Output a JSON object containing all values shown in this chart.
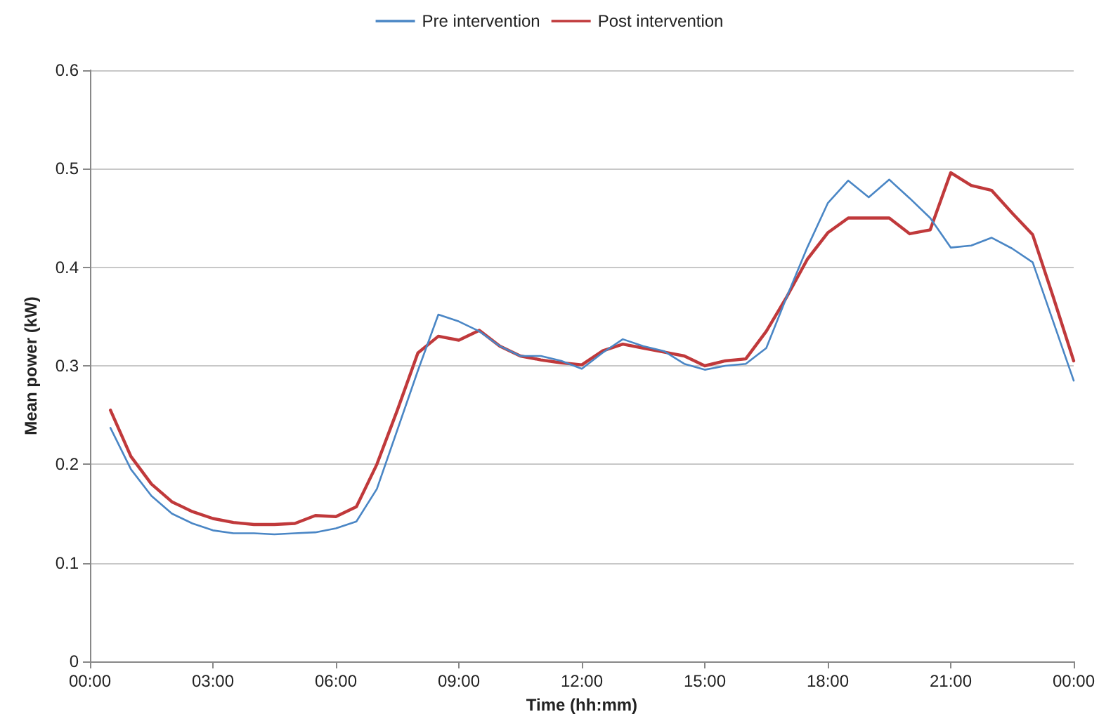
{
  "chart_data": {
    "type": "line",
    "xlabel": "Time (hh:mm)",
    "ylabel": "Mean power (kW)",
    "x": [
      0.5,
      1,
      1.5,
      2,
      2.5,
      3,
      3.5,
      4,
      4.5,
      5,
      5.5,
      6,
      6.5,
      7,
      7.5,
      8,
      8.5,
      9,
      9.5,
      10,
      10.5,
      11,
      11.5,
      12,
      12.5,
      13,
      13.5,
      14,
      14.5,
      15,
      15.5,
      16,
      16.5,
      17,
      17.5,
      18,
      18.5,
      19,
      19.5,
      20,
      20.5,
      21,
      21.5,
      22,
      22.5,
      23,
      23.5,
      24
    ],
    "series": [
      {
        "name": "Pre intervention",
        "color": "#4a86c5",
        "values": [
          0.237,
          0.195,
          0.168,
          0.15,
          0.14,
          0.133,
          0.13,
          0.13,
          0.129,
          0.13,
          0.131,
          0.135,
          0.142,
          0.175,
          0.235,
          0.295,
          0.352,
          0.345,
          0.335,
          0.32,
          0.31,
          0.31,
          0.305,
          0.297,
          0.313,
          0.327,
          0.32,
          0.315,
          0.302,
          0.296,
          0.3,
          0.302,
          0.318,
          0.37,
          0.42,
          0.465,
          0.488,
          0.471,
          0.489,
          0.47,
          0.45,
          0.42,
          0.422,
          0.43,
          0.419,
          0.405,
          0.345,
          0.285
        ]
      },
      {
        "name": "Post intervention",
        "color": "#c0393b",
        "values": [
          0.255,
          0.208,
          0.18,
          0.162,
          0.152,
          0.145,
          0.141,
          0.139,
          0.139,
          0.14,
          0.148,
          0.147,
          0.157,
          0.2,
          0.255,
          0.313,
          0.33,
          0.326,
          0.336,
          0.32,
          0.31,
          0.306,
          0.303,
          0.301,
          0.315,
          0.322,
          0.318,
          0.314,
          0.31,
          0.3,
          0.305,
          0.307,
          0.335,
          0.37,
          0.408,
          0.435,
          0.45,
          0.45,
          0.45,
          0.434,
          0.438,
          0.496,
          0.483,
          0.478,
          0.455,
          0.433,
          0.37,
          0.305
        ]
      }
    ],
    "xlim": [
      0,
      24
    ],
    "xticks": [
      {
        "value": 0,
        "label": "00:00"
      },
      {
        "value": 3,
        "label": "03:00"
      },
      {
        "value": 6,
        "label": "06:00"
      },
      {
        "value": 9,
        "label": "09:00"
      },
      {
        "value": 12,
        "label": "12:00"
      },
      {
        "value": 15,
        "label": "15:00"
      },
      {
        "value": 18,
        "label": "18:00"
      },
      {
        "value": 21,
        "label": "21:00"
      },
      {
        "value": 24,
        "label": "00:00"
      }
    ],
    "ylim": [
      0,
      0.6
    ],
    "yticks": [
      0,
      0.1,
      0.2,
      0.3,
      0.4,
      0.5,
      0.6
    ],
    "grid": "y",
    "legend": "top",
    "marker": "none",
    "line_style": "solid"
  }
}
